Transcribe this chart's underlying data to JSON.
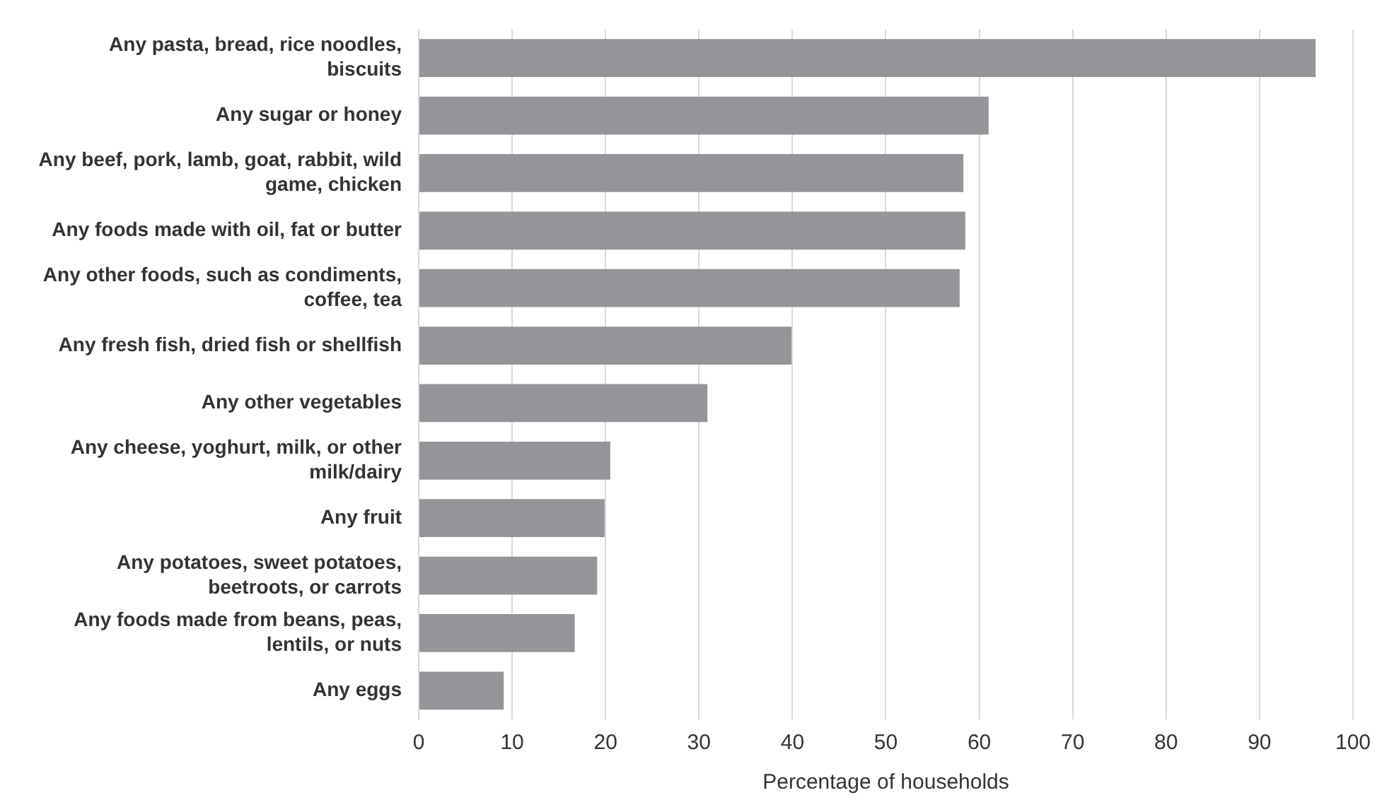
{
  "chart_data": {
    "type": "bar",
    "orientation": "horizontal",
    "xlabel": "Percentage of households",
    "categories": [
      "Any pasta, bread, rice noodles, biscuits",
      "Any sugar or honey",
      "Any beef, pork, lamb, goat, rabbit, wild game, chicken",
      "Any foods made with oil, fat or butter",
      "Any other foods, such as condiments, coffee, tea",
      "Any fresh fish, dried fish or shellfish",
      "Any other vegetables",
      "Any cheese, yoghurt, milk, or other milk/dairy",
      "Any fruit",
      "Any potatoes, sweet potatoes, beetroots, or carrots",
      "Any foods made from beans, peas, lentils, or nuts",
      "Any eggs"
    ],
    "values": [
      96,
      61,
      58.3,
      58.5,
      57.9,
      39.9,
      30.9,
      20.5,
      19.9,
      19.1,
      16.7,
      9.1
    ],
    "color": "#939598",
    "xlim": [
      0,
      100
    ],
    "xticks": [
      0,
      10,
      20,
      30,
      40,
      50,
      60,
      70,
      80,
      90,
      100
    ],
    "grid": "x",
    "legend": false
  }
}
